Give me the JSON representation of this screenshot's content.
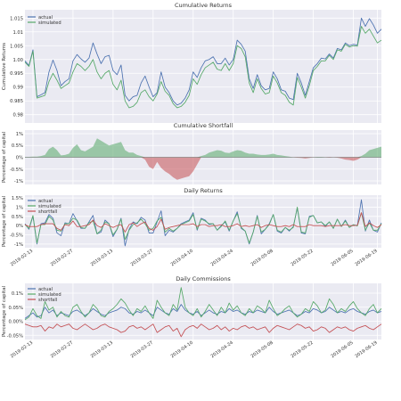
{
  "colors": {
    "actual": "#4c72b0",
    "simulated": "#55a868",
    "shortfall": "#c44e52",
    "panel_bg": "#eaeaf2",
    "grid": "#ffffff",
    "text": "#333333",
    "fill_positive": "#55a868",
    "fill_negative": "#c44e52"
  },
  "chart_data": [
    {
      "type": "line",
      "title": "Cumulative Returns",
      "ylabel": "Cumulative Returns",
      "ylim": [
        0.977,
        1.018
      ],
      "yticks": [
        0.98,
        0.985,
        0.99,
        0.995,
        1.0,
        1.005,
        1.01,
        1.015
      ],
      "ytick_labels": [
        "0.98",
        "0.985",
        "0.99",
        "0.995",
        "1.00",
        "1.005",
        "1.01",
        "1.015"
      ],
      "legend": "top-left",
      "grid": true,
      "x_tick_labels_shown": false,
      "series": [
        {
          "name": "actual",
          "key": "actual",
          "values": [
            0.9995,
            0.9978,
            1.0035,
            0.9865,
            0.9872,
            0.988,
            0.9955,
            0.9998,
            0.996,
            0.9905,
            0.992,
            0.993,
            0.9995,
            1.0018,
            1.0002,
            0.999,
            1.0005,
            1.006,
            1.002,
            0.9985,
            1.001,
            1.0015,
            0.996,
            0.9945,
            0.998,
            0.987,
            0.985,
            0.9865,
            0.987,
            0.9915,
            0.994,
            0.99,
            0.9865,
            0.988,
            0.9955,
            0.99,
            0.988,
            0.985,
            0.9835,
            0.9842,
            0.986,
            0.989,
            0.9955,
            0.9935,
            0.997,
            0.9995,
            1.0,
            1.001,
            0.9985,
            0.9985,
            1.0005,
            0.998,
            1.0,
            1.007,
            1.0055,
            1.003,
            0.993,
            0.9895,
            0.9945,
            0.9905,
            0.989,
            0.9895,
            0.9955,
            0.993,
            0.989,
            0.9885,
            0.986,
            0.9855,
            0.995,
            0.9915,
            0.987,
            0.992,
            0.997,
            0.9985,
            1.0005,
            1.0002,
            1.002,
            1.0005,
            1.004,
            1.0035,
            1.006,
            1.005,
            1.0055,
            1.0052,
            1.015,
            1.012,
            1.0148,
            1.0125,
            1.0095,
            1.011
          ]
        },
        {
          "name": "simulated",
          "key": "simulated",
          "values": [
            0.999,
            0.9975,
            1.003,
            0.986,
            0.9865,
            0.987,
            0.992,
            0.995,
            0.9925,
            0.9895,
            0.9905,
            0.9915,
            0.9955,
            0.9985,
            0.9975,
            0.996,
            0.9975,
            1.0,
            0.9955,
            0.993,
            0.995,
            0.996,
            0.991,
            0.989,
            0.9925,
            0.985,
            0.9825,
            0.983,
            0.9845,
            0.988,
            0.989,
            0.9865,
            0.985,
            0.9875,
            0.992,
            0.9885,
            0.987,
            0.984,
            0.9825,
            0.983,
            0.9845,
            0.987,
            0.993,
            0.991,
            0.9945,
            0.997,
            0.998,
            0.999,
            0.9965,
            0.996,
            0.9985,
            0.996,
            0.9985,
            1.005,
            1.004,
            1.001,
            0.9915,
            0.988,
            0.993,
            0.9895,
            0.9875,
            0.988,
            0.994,
            0.9915,
            0.988,
            0.987,
            0.9845,
            0.9835,
            0.9935,
            0.99,
            0.986,
            0.9905,
            0.996,
            0.9975,
            0.9995,
            0.9995,
            1.0015,
            1.0,
            1.0035,
            1.003,
            1.0055,
            1.0045,
            1.005,
            1.0048,
            1.012,
            1.0095,
            1.011,
            1.0085,
            1.006,
            1.007
          ]
        }
      ]
    },
    {
      "type": "area",
      "title": "Cumulative Shortfall",
      "ylabel": "Percentage of capital",
      "ylim": [
        -1.15,
        1.15
      ],
      "yticks": [
        -1,
        -0.5,
        0,
        0.5,
        1
      ],
      "ytick_labels": [
        "-1%",
        "-0.5%",
        "0%",
        "0.5%",
        "1%"
      ],
      "legend": "none",
      "grid": true,
      "x_tick_labels_shown": false,
      "series": [
        {
          "name": "",
          "key": "shortfall",
          "values": [
            0.02,
            0.02,
            0.03,
            0.03,
            0.05,
            0.1,
            0.35,
            0.45,
            0.3,
            0.08,
            0.1,
            0.15,
            0.4,
            0.55,
            0.3,
            0.25,
            0.35,
            0.45,
            0.8,
            0.7,
            0.6,
            0.5,
            0.55,
            0.6,
            0.65,
            0.3,
            0.2,
            0.2,
            0.1,
            0.05,
            -0.1,
            -0.4,
            -0.5,
            -0.2,
            -0.45,
            -0.6,
            -0.7,
            -0.85,
            -0.95,
            -0.9,
            -0.85,
            -0.8,
            -0.6,
            -0.3,
            0.05,
            0.1,
            0.2,
            0.25,
            0.3,
            0.28,
            0.2,
            0.18,
            0.25,
            0.3,
            0.28,
            0.2,
            0.15,
            0.15,
            0.12,
            0.1,
            0.1,
            0.12,
            0.15,
            0.1,
            0.08,
            0.05,
            0.03,
            0.0,
            -0.02,
            -0.03,
            -0.05,
            -0.03,
            0.0,
            0.02,
            0.02,
            0.0,
            -0.02,
            0.0,
            -0.02,
            -0.05,
            -0.1,
            -0.12,
            -0.15,
            -0.1,
            0.05,
            0.15,
            0.3,
            0.35,
            0.4,
            0.45
          ]
        }
      ]
    },
    {
      "type": "line",
      "title": "Daily Returns",
      "ylabel": "Percentage of capital",
      "ylim": [
        -1.2,
        1.65
      ],
      "yticks": [
        -1,
        -0.5,
        0,
        0.5,
        1,
        1.5
      ],
      "ytick_labels": [
        "-1%",
        "-0.5%",
        "0%",
        "0.5%",
        "1%",
        "1.5%"
      ],
      "legend": "top-left",
      "grid": true,
      "x_tick_labels_shown": true,
      "series": [
        {
          "name": "actual",
          "key": "actual",
          "values": [
            0.1,
            -0.2,
            0.5,
            -1.0,
            0.1,
            0.15,
            0.6,
            0.4,
            -0.4,
            -0.55,
            0.15,
            0.1,
            0.65,
            0.25,
            -0.15,
            -0.15,
            0.2,
            0.55,
            -0.45,
            -0.35,
            0.3,
            0.1,
            -0.6,
            -0.2,
            0.4,
            -1.1,
            -0.2,
            0.2,
            0.1,
            0.45,
            0.3,
            -0.4,
            -0.4,
            0.2,
            0.8,
            -0.55,
            -0.25,
            -0.35,
            -0.15,
            0.1,
            0.2,
            0.3,
            0.7,
            -0.25,
            0.4,
            0.3,
            0.05,
            0.1,
            -0.25,
            0.0,
            0.2,
            -0.3,
            0.25,
            0.75,
            -0.15,
            -0.3,
            -1.0,
            -0.35,
            0.55,
            -0.45,
            -0.2,
            0.1,
            0.6,
            -0.3,
            -0.4,
            -0.1,
            -0.3,
            -0.05,
            0.95,
            -0.4,
            -0.45,
            0.5,
            0.55,
            0.15,
            0.2,
            -0.05,
            0.2,
            -0.15,
            0.35,
            -0.05,
            0.3,
            -0.1,
            0.05,
            0.0,
            1.4,
            -0.3,
            0.3,
            -0.25,
            -0.35,
            0.15
          ]
        },
        {
          "name": "simulated",
          "key": "simulated",
          "values": [
            0.05,
            -0.15,
            0.55,
            -0.95,
            0.05,
            0.05,
            0.5,
            0.3,
            -0.25,
            -0.3,
            0.1,
            0.1,
            0.4,
            0.3,
            -0.1,
            -0.15,
            0.15,
            0.25,
            -0.45,
            -0.25,
            0.2,
            0.1,
            -0.5,
            -0.2,
            0.35,
            -0.75,
            -0.25,
            0.05,
            0.15,
            0.35,
            0.1,
            -0.25,
            -0.15,
            0.25,
            0.45,
            -0.35,
            -0.15,
            -0.3,
            -0.15,
            0.05,
            0.15,
            0.25,
            0.6,
            -0.2,
            0.35,
            0.25,
            0.1,
            0.1,
            -0.25,
            -0.05,
            0.25,
            -0.25,
            0.25,
            0.65,
            -0.1,
            -0.3,
            -0.95,
            -0.35,
            0.5,
            -0.35,
            -0.2,
            0.05,
            0.6,
            -0.25,
            -0.35,
            -0.1,
            -0.25,
            -0.1,
            1.0,
            -0.35,
            -0.4,
            0.45,
            0.55,
            0.15,
            0.2,
            0.0,
            0.2,
            -0.15,
            0.35,
            -0.05,
            0.25,
            -0.1,
            0.05,
            -0.02,
            0.7,
            -0.25,
            0.15,
            -0.25,
            -0.25,
            0.1
          ]
        },
        {
          "name": "shortfall",
          "key": "shortfall",
          "values": [
            0.05,
            -0.05,
            -0.05,
            -0.05,
            0.05,
            0.1,
            0.1,
            0.1,
            -0.15,
            -0.25,
            0.05,
            0.0,
            0.25,
            -0.05,
            -0.05,
            0.0,
            0.05,
            0.3,
            0.0,
            -0.1,
            0.1,
            0.0,
            -0.1,
            0.0,
            0.05,
            -0.35,
            0.05,
            0.15,
            -0.05,
            0.1,
            0.2,
            -0.15,
            -0.25,
            -0.05,
            0.35,
            -0.2,
            -0.1,
            -0.05,
            0.0,
            0.05,
            0.05,
            0.05,
            0.1,
            -0.05,
            0.05,
            0.05,
            -0.05,
            0.0,
            0.0,
            0.05,
            -0.05,
            -0.05,
            0.0,
            0.1,
            -0.05,
            0.0,
            -0.05,
            0.0,
            0.05,
            -0.1,
            0.0,
            0.05,
            0.0,
            -0.05,
            -0.05,
            0.0,
            -0.05,
            0.05,
            -0.05,
            -0.05,
            -0.05,
            0.05,
            0.0,
            0.0,
            0.0,
            -0.05,
            0.0,
            0.0,
            0.0,
            0.0,
            0.05,
            0.0,
            0.0,
            0.02,
            0.7,
            -0.05,
            0.15,
            0.0,
            -0.1,
            0.05
          ]
        }
      ]
    },
    {
      "type": "line",
      "title": "Daily Commissions",
      "ylabel": "Percentage of capital",
      "ylim": [
        -0.065,
        0.135
      ],
      "yticks": [
        -0.05,
        0,
        0.05,
        0.1
      ],
      "ytick_labels": [
        "-0.05%",
        "0.00%",
        "0.05%",
        "0.1%"
      ],
      "legend": "top-left",
      "grid": true,
      "x_tick_labels_shown": true,
      "series": [
        {
          "name": "actual",
          "key": "actual",
          "values": [
            0.01,
            0.02,
            0.03,
            0.015,
            0.02,
            0.05,
            0.03,
            0.04,
            0.02,
            0.03,
            0.025,
            0.02,
            0.035,
            0.04,
            0.03,
            0.02,
            0.03,
            0.045,
            0.035,
            0.025,
            0.02,
            0.03,
            0.035,
            0.04,
            0.05,
            0.045,
            0.03,
            0.025,
            0.035,
            0.03,
            0.04,
            0.03,
            0.02,
            0.05,
            0.04,
            0.03,
            0.025,
            0.045,
            0.035,
            0.06,
            0.04,
            0.03,
            0.025,
            0.035,
            0.02,
            0.03,
            0.04,
            0.03,
            0.025,
            0.035,
            0.03,
            0.045,
            0.035,
            0.04,
            0.03,
            0.025,
            0.035,
            0.03,
            0.04,
            0.035,
            0.03,
            0.05,
            0.035,
            0.025,
            0.03,
            0.035,
            0.04,
            0.03,
            0.02,
            0.025,
            0.035,
            0.03,
            0.045,
            0.04,
            0.03,
            0.035,
            0.05,
            0.04,
            0.03,
            0.035,
            0.03,
            0.04,
            0.045,
            0.035,
            0.03,
            0.025,
            0.035,
            0.04,
            0.03,
            0.035
          ]
        },
        {
          "name": "simulated",
          "key": "simulated",
          "values": [
            0.005,
            0.015,
            0.045,
            0.02,
            0.01,
            0.07,
            0.04,
            0.05,
            0.015,
            0.035,
            0.02,
            0.015,
            0.05,
            0.06,
            0.035,
            0.015,
            0.03,
            0.06,
            0.045,
            0.02,
            0.015,
            0.035,
            0.045,
            0.06,
            0.08,
            0.065,
            0.04,
            0.02,
            0.045,
            0.035,
            0.055,
            0.03,
            0.01,
            0.075,
            0.05,
            0.03,
            0.02,
            0.06,
            0.04,
            0.12,
            0.05,
            0.03,
            0.02,
            0.045,
            0.015,
            0.035,
            0.06,
            0.04,
            0.02,
            0.05,
            0.03,
            0.065,
            0.04,
            0.055,
            0.03,
            0.02,
            0.045,
            0.03,
            0.055,
            0.045,
            0.03,
            0.075,
            0.045,
            0.02,
            0.03,
            0.045,
            0.055,
            0.03,
            0.015,
            0.025,
            0.045,
            0.035,
            0.07,
            0.055,
            0.03,
            0.04,
            0.08,
            0.06,
            0.03,
            0.045,
            0.035,
            0.055,
            0.07,
            0.045,
            0.03,
            0.02,
            0.045,
            0.06,
            0.03,
            0.045
          ]
        },
        {
          "name": "shortfall",
          "key": "shortfall",
          "values": [
            -0.01,
            -0.015,
            -0.02,
            -0.02,
            -0.015,
            -0.035,
            -0.02,
            -0.025,
            -0.01,
            -0.02,
            -0.015,
            -0.01,
            -0.025,
            -0.03,
            -0.02,
            -0.01,
            -0.02,
            -0.03,
            -0.025,
            -0.015,
            -0.01,
            -0.02,
            -0.025,
            -0.03,
            -0.04,
            -0.035,
            -0.02,
            -0.015,
            -0.025,
            -0.02,
            -0.03,
            -0.02,
            -0.01,
            -0.04,
            -0.03,
            -0.02,
            -0.015,
            -0.035,
            -0.025,
            -0.055,
            -0.03,
            -0.02,
            -0.015,
            -0.025,
            -0.01,
            -0.02,
            -0.03,
            -0.025,
            -0.015,
            -0.03,
            -0.02,
            -0.035,
            -0.025,
            -0.03,
            -0.02,
            -0.015,
            -0.025,
            -0.02,
            -0.03,
            -0.025,
            -0.02,
            -0.04,
            -0.025,
            -0.015,
            -0.02,
            -0.025,
            -0.03,
            -0.02,
            -0.01,
            -0.015,
            -0.025,
            -0.02,
            -0.035,
            -0.03,
            -0.02,
            -0.025,
            -0.04,
            -0.03,
            -0.02,
            -0.025,
            -0.02,
            -0.03,
            -0.035,
            -0.025,
            -0.02,
            -0.015,
            -0.025,
            -0.03,
            -0.02,
            -0.01
          ]
        }
      ]
    }
  ],
  "x_axis": {
    "n_points": 90,
    "tick_labels": [
      "2019-02-13",
      "2019-02-27",
      "2019-03-13",
      "2019-03-27",
      "2019-04-10",
      "2019-04-24",
      "2019-05-08",
      "2019-05-22",
      "2019-06-05",
      "2019-06-19"
    ],
    "tick_index": [
      2,
      12,
      22,
      32,
      42,
      52,
      62,
      72,
      82,
      88
    ]
  }
}
